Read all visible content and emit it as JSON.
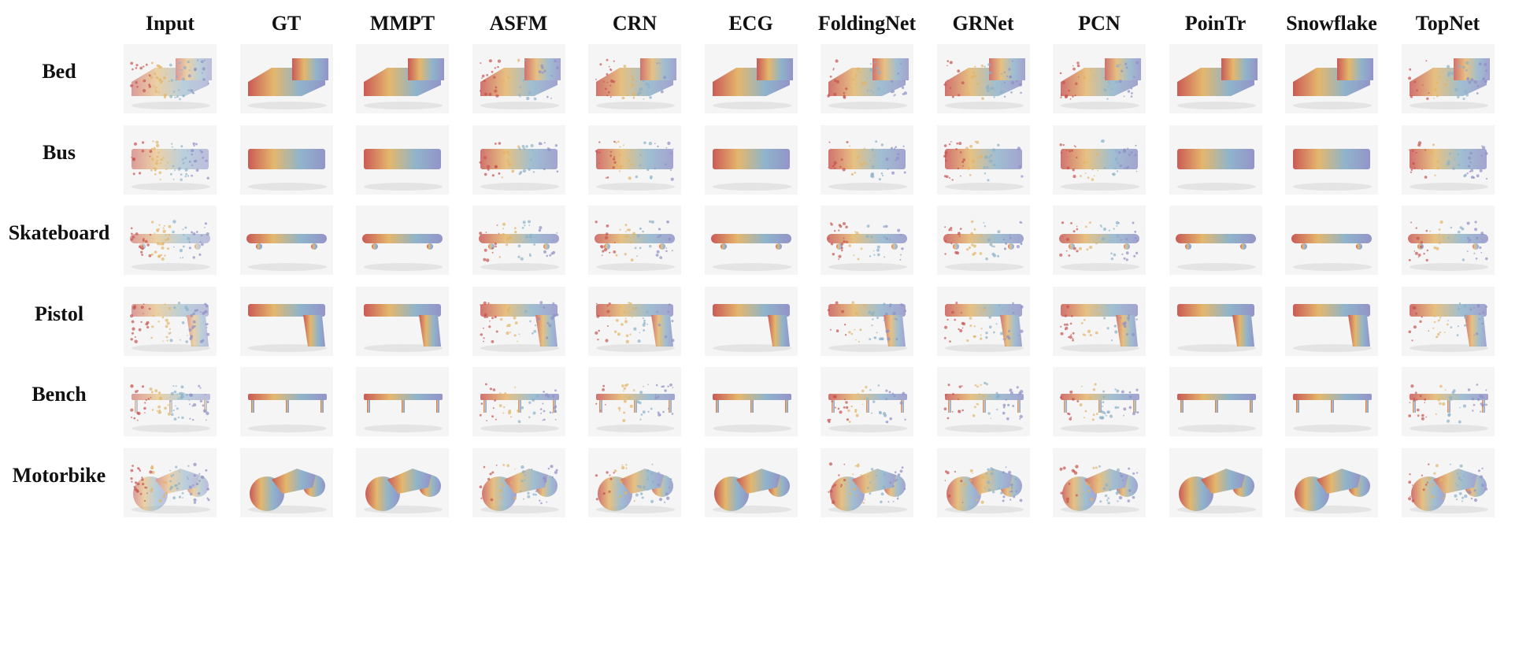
{
  "columns": [
    "Input",
    "GT",
    "MMPT",
    "ASFM",
    "CRN",
    "ECG",
    "FoldingNet",
    "GRNet",
    "PCN",
    "PoinTr",
    "Snowflake",
    "TopNet"
  ],
  "rows": [
    "Bed",
    "Bus",
    "Skateboard",
    "Pistol",
    "Bench",
    "Motorbike"
  ],
  "colors": {
    "gradient": [
      "#c8524e",
      "#e3b465",
      "#8ab1c9",
      "#8e8fc6"
    ],
    "background": "#f5f5f5",
    "shadow": "#d8d8d8"
  }
}
